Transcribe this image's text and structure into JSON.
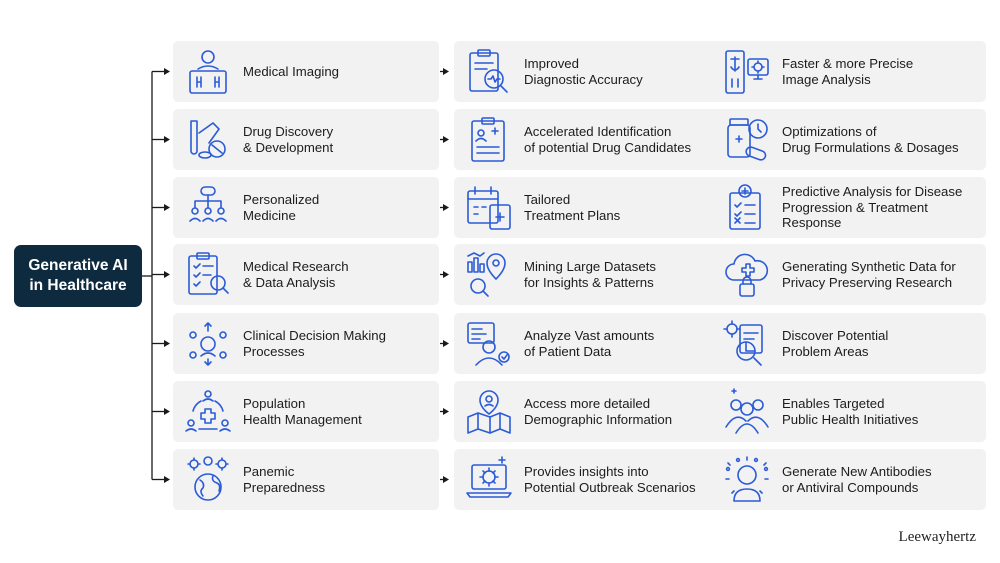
{
  "root": {
    "label": "Generative AI\nin Healthcare"
  },
  "colors": {
    "root_bg": "#0e2a3f",
    "card_bg": "#f2f2f2",
    "icon_stroke": "#2b5bd7",
    "connector": "#1a1a1a"
  },
  "rows": [
    {
      "area": {
        "label": "Medical Imaging",
        "icon": "radiologist-xray-icon"
      },
      "benefit1": {
        "label": "Improved\nDiagnostic Accuracy",
        "icon": "clipboard-magnifier-icon"
      },
      "benefit2": {
        "label": "Faster & more Precise\nImage Analysis",
        "icon": "xray-monitor-gear-icon"
      }
    },
    {
      "area": {
        "label": "Drug Discovery\n& Development",
        "icon": "test-tube-pills-icon"
      },
      "benefit1": {
        "label": "Accelerated Identification\nof potential Drug Candidates",
        "icon": "medical-report-icon"
      },
      "benefit2": {
        "label": "Optimizations of\nDrug Formulations & Dosages",
        "icon": "pill-bottle-clock-icon"
      }
    },
    {
      "area": {
        "label": "Personalized\nMedicine",
        "icon": "pill-people-network-icon"
      },
      "benefit1": {
        "label": "Tailored\nTreatment Plans",
        "icon": "calendar-plan-icon"
      },
      "benefit2": {
        "label": "Predictive Analysis for Disease\nProgression & Treatment\nResponse",
        "icon": "checklist-plus-icon"
      }
    },
    {
      "area": {
        "label": "Medical Research\n& Data Analysis",
        "icon": "clipboard-research-icon"
      },
      "benefit1": {
        "label": "Mining Large Datasets\nfor Insights & Patterns",
        "icon": "data-pin-magnifier-icon"
      },
      "benefit2": {
        "label": "Generating Synthetic Data for\nPrivacy Preserving Research",
        "icon": "cloud-lock-icon"
      }
    },
    {
      "area": {
        "label": "Clinical Decision Making\nProcesses",
        "icon": "doctor-decision-icon"
      },
      "benefit1": {
        "label": "Analyze Vast amounts\nof Patient Data",
        "icon": "patient-profile-icon"
      },
      "benefit2": {
        "label": "Discover Potential\nProblem Areas",
        "icon": "gear-report-magnifier-icon"
      }
    },
    {
      "area": {
        "label": "Population\nHealth Management",
        "icon": "community-health-icon"
      },
      "benefit1": {
        "label": "Access more detailed\nDemographic Information",
        "icon": "map-pin-user-icon"
      },
      "benefit2": {
        "label": "Enables Targeted\nPublic Health Initiatives",
        "icon": "group-plus-icon"
      }
    },
    {
      "area": {
        "label": "Panemic\nPreparedness",
        "icon": "globe-virus-icon"
      },
      "benefit1": {
        "label": "Provides insights into\nPotential Outbreak Scenarios",
        "icon": "laptop-virus-icon"
      },
      "benefit2": {
        "label": "Generate New Antibodies\nor Antiviral Compounds",
        "icon": "person-virus-icon"
      }
    }
  ],
  "brand": {
    "text": "Leewayhertz"
  }
}
